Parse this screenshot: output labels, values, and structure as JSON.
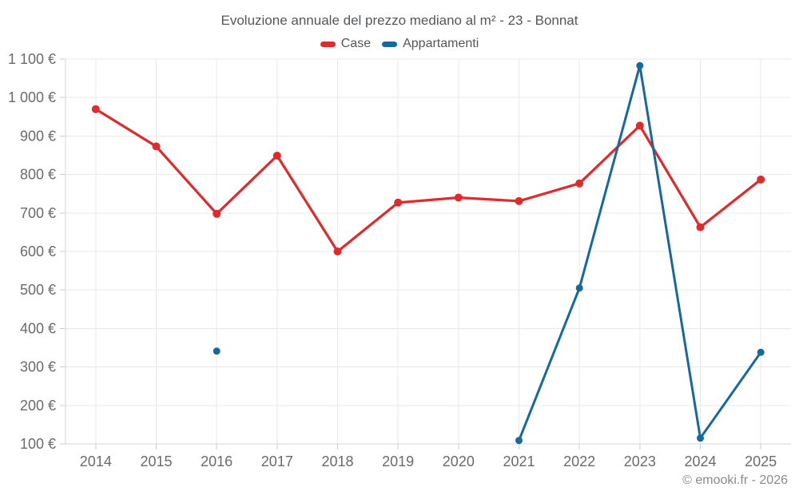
{
  "chart_data": {
    "type": "line",
    "title": "Evoluzione annuale del prezzo mediano al m² - 23 - Bonnat",
    "categories": [
      "2014",
      "2015",
      "2016",
      "2017",
      "2018",
      "2019",
      "2020",
      "2021",
      "2022",
      "2023",
      "2024",
      "2025"
    ],
    "series": [
      {
        "name": "Case",
        "color": "#e02a2c",
        "values": [
          970,
          873,
          698,
          849,
          600,
          727,
          740,
          731,
          777,
          927,
          663,
          787
        ]
      },
      {
        "name": "Appartamenti",
        "color": "#15699f",
        "values": [
          null,
          null,
          341,
          null,
          null,
          null,
          null,
          109,
          505,
          1083,
          115,
          338
        ]
      }
    ],
    "xlabel": "",
    "ylabel": "",
    "ylim": [
      100,
      1100
    ],
    "ytick_step": 100,
    "ytick_labels": [
      "100 €",
      "200 €",
      "300 €",
      "400 €",
      "500 €",
      "600 €",
      "700 €",
      "800 €",
      "900 €",
      "1 000 €",
      "1 100 €"
    ],
    "grid": true,
    "legend_position": "top",
    "currency": "€"
  },
  "footer": {
    "credit": "© emooki.fr - 2026"
  },
  "colors": {
    "background": "#ffffff",
    "grid": "#e8e8e8",
    "axis": "#d6d6d6",
    "tick": "#cccccc",
    "tick_label": "#6b6b6b",
    "title_text": "#54575a",
    "legend_text": "#565656",
    "footer_text": "#8a8a8a"
  }
}
